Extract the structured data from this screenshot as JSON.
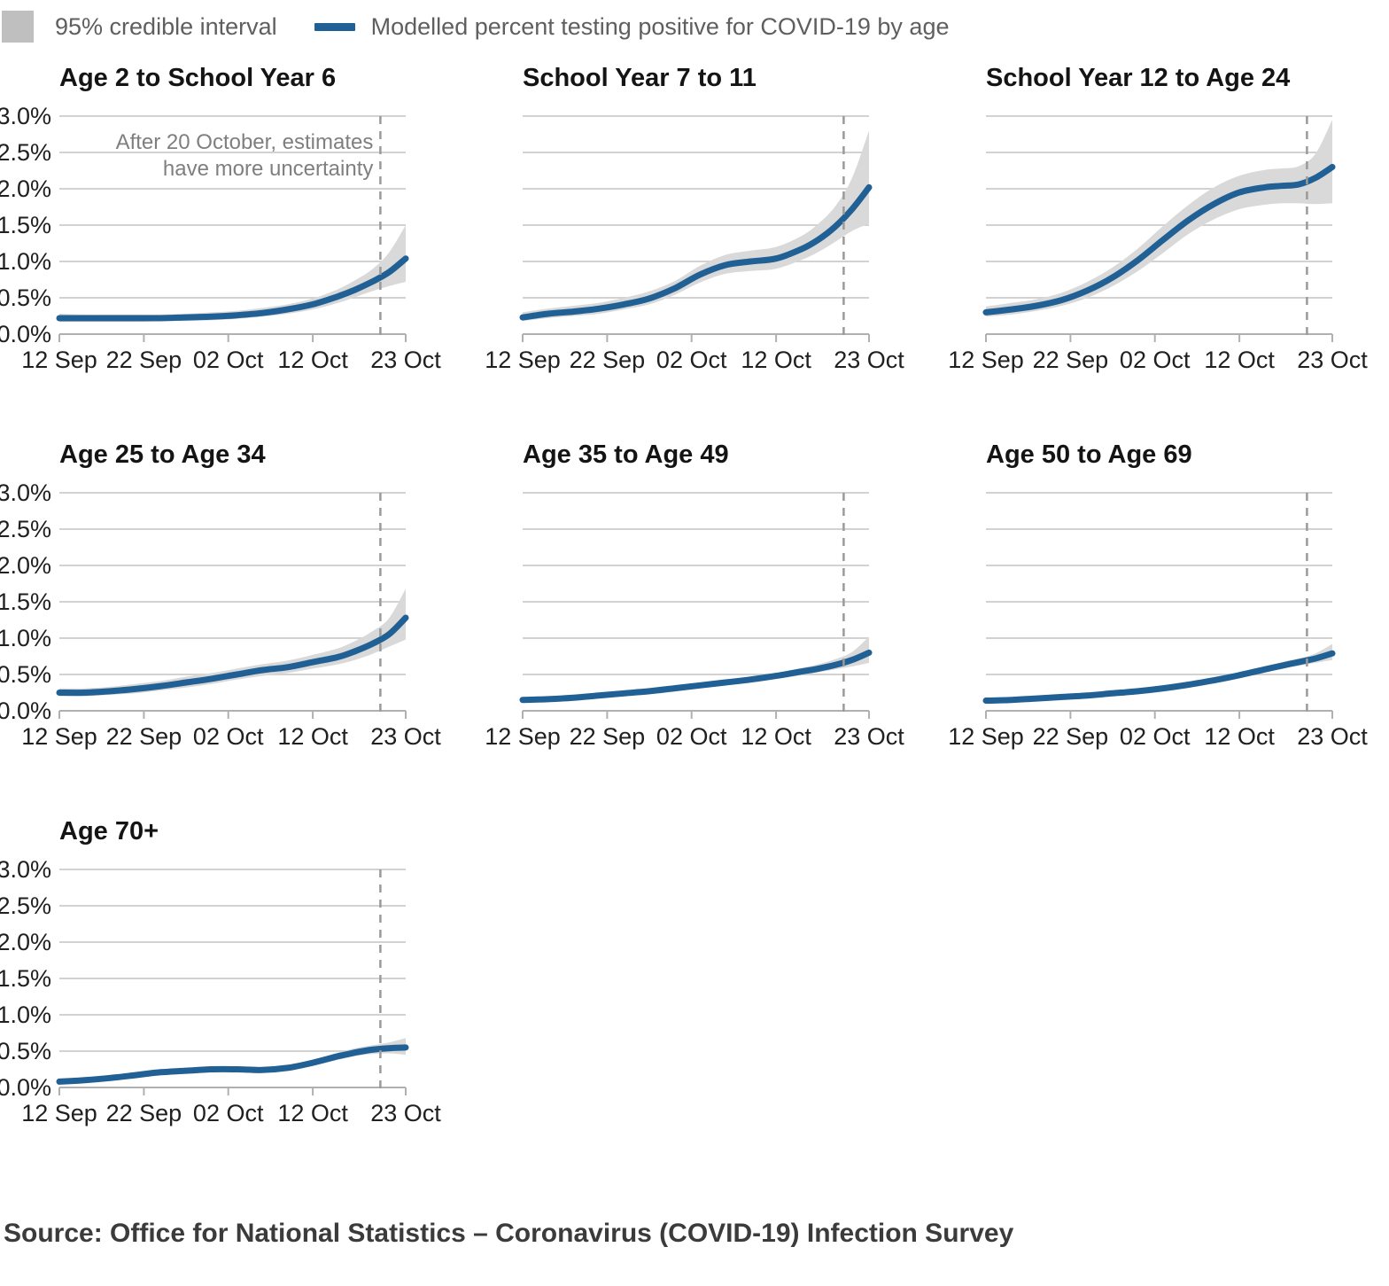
{
  "legend": {
    "ci_label": "95% credible interval",
    "line_label": "Modelled percent testing positive for COVID-19 by age"
  },
  "annotation": {
    "line1": "After 20 October, estimates",
    "line2": "have more uncertainty"
  },
  "source": "Source: Office for National Statistics – Coronavirus (COVID-19) Infection Survey",
  "colors": {
    "line": "#206095",
    "band": "#d9d9d9",
    "grid": "#d2d2d2",
    "axis": "#b0b0b0",
    "dashed": "#9a9a9a",
    "label": "#202020",
    "annotation": "#7f7f7f",
    "legend_swatch": "#bfbfbf",
    "legend_text": "#5f5f5f"
  },
  "axes": {
    "x_domain_days": 41,
    "y_max": 3.0,
    "uncertainty_day": 38,
    "grid_on": true,
    "x_ticks": [
      {
        "day": 0,
        "label": "12 Sep"
      },
      {
        "day": 10,
        "label": "22 Sep"
      },
      {
        "day": 20,
        "label": "02 Oct"
      },
      {
        "day": 30,
        "label": "12 Oct"
      },
      {
        "day": 41,
        "label": "23 Oct"
      }
    ],
    "y_ticks": [
      {
        "v": 0.0,
        "label": "0.0%"
      },
      {
        "v": 0.5,
        "label": "0.5%"
      },
      {
        "v": 1.0,
        "label": "1.0%"
      },
      {
        "v": 1.5,
        "label": "1.5%"
      },
      {
        "v": 2.0,
        "label": "2.0%"
      },
      {
        "v": 2.5,
        "label": "2.5%"
      },
      {
        "v": 3.0,
        "label": "3.0%"
      }
    ]
  },
  "chart_data": [
    {
      "type": "line",
      "title": "Age 2 to School Year 6",
      "show_y_axis": true,
      "annotation": true,
      "days": [
        0,
        3,
        6,
        9,
        12,
        15,
        18,
        21,
        24,
        27,
        30,
        33,
        35,
        37,
        39,
        41
      ],
      "values": [
        0.22,
        0.22,
        0.22,
        0.22,
        0.22,
        0.23,
        0.24,
        0.26,
        0.29,
        0.34,
        0.41,
        0.52,
        0.61,
        0.72,
        0.85,
        1.04
      ],
      "lower": [
        0.17,
        0.17,
        0.17,
        0.17,
        0.18,
        0.18,
        0.19,
        0.21,
        0.24,
        0.28,
        0.34,
        0.43,
        0.51,
        0.59,
        0.66,
        0.72
      ],
      "upper": [
        0.28,
        0.27,
        0.27,
        0.27,
        0.27,
        0.28,
        0.3,
        0.32,
        0.36,
        0.41,
        0.49,
        0.62,
        0.74,
        0.89,
        1.12,
        1.5
      ]
    },
    {
      "type": "line",
      "title": "School Year 7 to 11",
      "show_y_axis": false,
      "annotation": false,
      "days": [
        0,
        3,
        6,
        9,
        12,
        15,
        18,
        21,
        24,
        27,
        30,
        33,
        35,
        37,
        39,
        41
      ],
      "values": [
        0.23,
        0.28,
        0.31,
        0.35,
        0.41,
        0.49,
        0.63,
        0.82,
        0.95,
        1.0,
        1.04,
        1.17,
        1.3,
        1.48,
        1.72,
        2.02
      ],
      "lower": [
        0.18,
        0.22,
        0.25,
        0.28,
        0.34,
        0.41,
        0.54,
        0.71,
        0.83,
        0.87,
        0.9,
        1.02,
        1.13,
        1.27,
        1.42,
        1.52
      ],
      "upper": [
        0.3,
        0.35,
        0.39,
        0.43,
        0.5,
        0.59,
        0.73,
        0.94,
        1.09,
        1.15,
        1.2,
        1.35,
        1.52,
        1.76,
        2.15,
        2.8
      ]
    },
    {
      "type": "line",
      "title": "School Year 12 to Age 24",
      "show_y_axis": false,
      "annotation": false,
      "days": [
        0,
        3,
        6,
        9,
        12,
        15,
        18,
        21,
        24,
        27,
        30,
        33,
        35,
        37,
        39,
        41
      ],
      "values": [
        0.3,
        0.34,
        0.39,
        0.47,
        0.6,
        0.78,
        1.02,
        1.3,
        1.57,
        1.79,
        1.95,
        2.02,
        2.04,
        2.06,
        2.15,
        2.3
      ],
      "lower": [
        0.24,
        0.27,
        0.32,
        0.39,
        0.5,
        0.66,
        0.87,
        1.12,
        1.38,
        1.58,
        1.72,
        1.78,
        1.8,
        1.8,
        1.79,
        1.8
      ],
      "upper": [
        0.38,
        0.43,
        0.48,
        0.57,
        0.72,
        0.92,
        1.18,
        1.49,
        1.78,
        2.02,
        2.18,
        2.26,
        2.28,
        2.31,
        2.48,
        2.95
      ]
    },
    {
      "type": "line",
      "title": "Age 25 to Age 34",
      "show_y_axis": true,
      "annotation": false,
      "days": [
        0,
        3,
        6,
        9,
        12,
        15,
        18,
        21,
        24,
        27,
        30,
        33,
        35,
        37,
        39,
        41
      ],
      "values": [
        0.25,
        0.25,
        0.27,
        0.3,
        0.34,
        0.39,
        0.44,
        0.5,
        0.56,
        0.6,
        0.67,
        0.74,
        0.82,
        0.92,
        1.05,
        1.28
      ],
      "lower": [
        0.2,
        0.2,
        0.22,
        0.24,
        0.28,
        0.32,
        0.37,
        0.43,
        0.48,
        0.52,
        0.58,
        0.64,
        0.7,
        0.78,
        0.88,
        0.98
      ],
      "upper": [
        0.31,
        0.31,
        0.33,
        0.37,
        0.41,
        0.47,
        0.52,
        0.58,
        0.64,
        0.69,
        0.77,
        0.86,
        0.96,
        1.09,
        1.27,
        1.68
      ]
    },
    {
      "type": "line",
      "title": "Age 35 to Age 49",
      "show_y_axis": false,
      "annotation": false,
      "days": [
        0,
        3,
        6,
        9,
        12,
        15,
        18,
        21,
        24,
        27,
        30,
        33,
        35,
        37,
        39,
        41
      ],
      "values": [
        0.15,
        0.16,
        0.18,
        0.21,
        0.24,
        0.27,
        0.31,
        0.35,
        0.39,
        0.43,
        0.48,
        0.54,
        0.58,
        0.63,
        0.7,
        0.8
      ],
      "lower": [
        0.13,
        0.14,
        0.16,
        0.18,
        0.21,
        0.24,
        0.28,
        0.32,
        0.36,
        0.4,
        0.44,
        0.49,
        0.53,
        0.57,
        0.61,
        0.66
      ],
      "upper": [
        0.18,
        0.19,
        0.21,
        0.24,
        0.27,
        0.31,
        0.35,
        0.39,
        0.43,
        0.47,
        0.52,
        0.59,
        0.64,
        0.71,
        0.81,
        1.02
      ]
    },
    {
      "type": "line",
      "title": "Age 50 to Age 69",
      "show_y_axis": false,
      "annotation": false,
      "days": [
        0,
        3,
        6,
        9,
        12,
        15,
        18,
        21,
        24,
        27,
        30,
        33,
        35,
        37,
        39,
        41
      ],
      "values": [
        0.14,
        0.15,
        0.17,
        0.19,
        0.21,
        0.24,
        0.27,
        0.31,
        0.36,
        0.42,
        0.49,
        0.57,
        0.62,
        0.67,
        0.72,
        0.79
      ],
      "lower": [
        0.12,
        0.13,
        0.15,
        0.17,
        0.19,
        0.22,
        0.25,
        0.29,
        0.33,
        0.39,
        0.45,
        0.53,
        0.58,
        0.62,
        0.66,
        0.7
      ],
      "upper": [
        0.17,
        0.18,
        0.19,
        0.22,
        0.24,
        0.27,
        0.3,
        0.34,
        0.39,
        0.45,
        0.53,
        0.61,
        0.67,
        0.72,
        0.79,
        0.92
      ]
    },
    {
      "type": "line",
      "title": "Age 70+",
      "show_y_axis": true,
      "annotation": false,
      "days": [
        0,
        3,
        6,
        9,
        12,
        15,
        18,
        21,
        24,
        27,
        30,
        33,
        35,
        37,
        39,
        41
      ],
      "values": [
        0.08,
        0.1,
        0.13,
        0.17,
        0.21,
        0.23,
        0.25,
        0.25,
        0.24,
        0.27,
        0.34,
        0.43,
        0.48,
        0.52,
        0.54,
        0.55
      ],
      "lower": [
        0.06,
        0.08,
        0.11,
        0.15,
        0.18,
        0.2,
        0.22,
        0.22,
        0.21,
        0.24,
        0.3,
        0.38,
        0.43,
        0.46,
        0.47,
        0.45
      ],
      "upper": [
        0.1,
        0.13,
        0.16,
        0.2,
        0.24,
        0.27,
        0.29,
        0.28,
        0.28,
        0.31,
        0.38,
        0.48,
        0.54,
        0.58,
        0.62,
        0.68
      ]
    }
  ]
}
